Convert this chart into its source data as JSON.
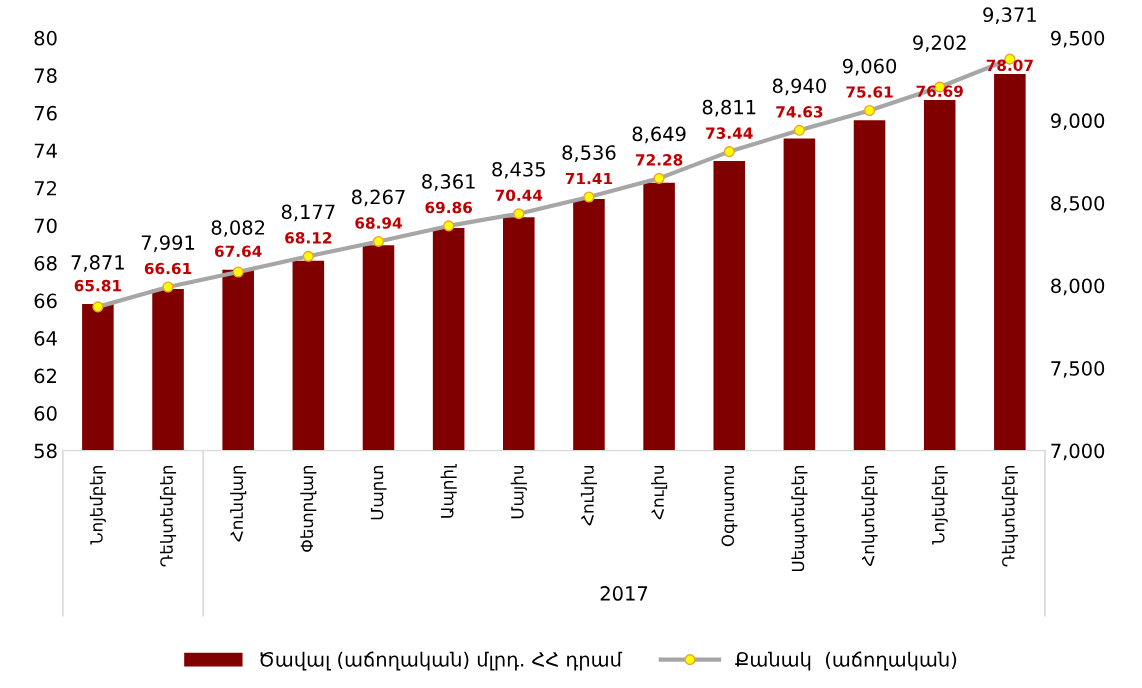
{
  "chart_data": {
    "type": "bar",
    "categories": [
      "Նոյեմբեր",
      "Դեկտեմբեր",
      "Հունվար",
      "Փետրվար",
      "Մարտ",
      "Ապրիլ",
      "Մայիս",
      "Հունիս",
      "Հուլիս",
      "Օգոստոս",
      "Սեպտեմբեր",
      "Հոկտեմբեր",
      "Նոյեմբեր",
      "Դեկտեմբեր"
    ],
    "series": [
      {
        "name": "Ծավալ (աճողական) մլրդ. ՀՀ դրամ",
        "color": "#800000",
        "values": [
          65.81,
          66.61,
          67.64,
          68.12,
          68.94,
          69.86,
          70.44,
          71.41,
          72.28,
          73.44,
          74.63,
          75.61,
          76.69,
          78.07
        ]
      },
      {
        "name": "Քանակ  (աճողական)",
        "type": "line",
        "axis": "y2",
        "color": "#a6a6a6",
        "marker": "circle",
        "values": [
          7871,
          7991,
          8082,
          8177,
          8267,
          8361,
          8435,
          8536,
          8649,
          8811,
          8940,
          9060,
          9202,
          9371
        ],
        "value_labels": [
          "7,871",
          "7,991",
          "8,082",
          "8,177",
          "8,267",
          "8,361",
          "8,435",
          "8,536",
          "8,649",
          "8,811",
          "8,940",
          "9,060",
          "9,202",
          "9,371"
        ]
      }
    ],
    "data_labels": true,
    "annotations": [
      "2017"
    ],
    "ylim": [
      58,
      80
    ],
    "yticks": [
      58,
      60,
      62,
      64,
      66,
      68,
      70,
      72,
      74,
      76,
      78,
      80
    ],
    "y2lim": [
      7000,
      9500
    ],
    "y2ticks": [
      {
        "value": 7000,
        "label": "7,000"
      },
      {
        "value": 7500,
        "label": "7,500"
      },
      {
        "value": 8000,
        "label": "8,000"
      },
      {
        "value": 8500,
        "label": "8,500"
      },
      {
        "value": 9000,
        "label": "9,000"
      },
      {
        "value": 9500,
        "label": "9,500"
      }
    ],
    "grid": false,
    "legend": "bottom"
  }
}
